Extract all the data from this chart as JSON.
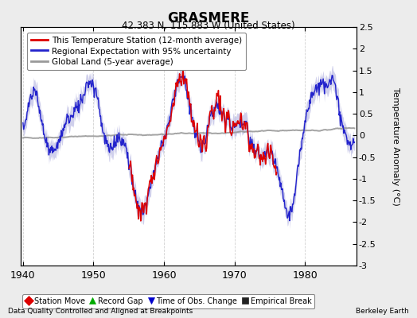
{
  "title": "GRASMERE",
  "subtitle": "42.383 N, 115.883 W (United States)",
  "xlabel_left": "Data Quality Controlled and Aligned at Breakpoints",
  "xlabel_right": "Berkeley Earth",
  "ylabel": "Temperature Anomaly (°C)",
  "year_start": 1940,
  "year_end": 1987,
  "ylim": [
    -3,
    2.5
  ],
  "yticks": [
    2.5,
    2,
    1.5,
    1,
    0.5,
    0,
    -0.5,
    -1,
    -1.5,
    -2,
    -2.5,
    -3
  ],
  "xticks": [
    1940,
    1950,
    1960,
    1970,
    1980
  ],
  "bg_color": "#ececec",
  "plot_bg_color": "#ffffff",
  "grid_color": "#cccccc",
  "red_line_color": "#dd0000",
  "blue_line_color": "#2222cc",
  "blue_band_color": "#aaaadd",
  "gray_line_color": "#999999",
  "station_start_year": 1955,
  "station_end_year": 1976,
  "legend_items": [
    {
      "label": "This Temperature Station (12-month average)",
      "color": "#dd0000",
      "lw": 2
    },
    {
      "label": "Regional Expectation with 95% uncertainty",
      "color": "#2222cc",
      "lw": 2
    },
    {
      "label": "Global Land (5-year average)",
      "color": "#999999",
      "lw": 2
    }
  ],
  "marker_items": [
    {
      "label": "Station Move",
      "color": "#dd0000",
      "marker": "D"
    },
    {
      "label": "Record Gap",
      "color": "#00aa00",
      "marker": "^"
    },
    {
      "label": "Time of Obs. Change",
      "color": "#0000cc",
      "marker": "v"
    },
    {
      "label": "Empirical Break",
      "color": "#222222",
      "marker": "s"
    }
  ]
}
